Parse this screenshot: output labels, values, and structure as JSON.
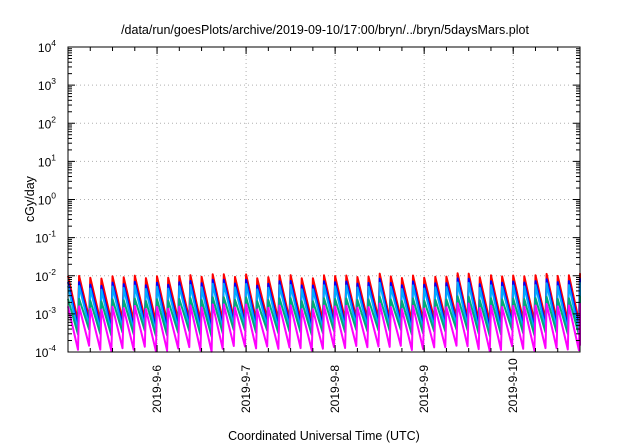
{
  "chart_data": {
    "type": "line",
    "title": "/data/run/goesPlots/archive/2019-09-10/17:00/bryn/../bryn/5daysMars.plot",
    "xlabel": "Coordinated Universal Time (UTC)",
    "ylabel": "cGy/day",
    "x_range": [
      "2019-09-05T00:00",
      "2019-09-10T18:00"
    ],
    "x_ticks": [
      "2019-9-6",
      "2019-9-7",
      "2019-9-8",
      "2019-9-9",
      "2019-9-10"
    ],
    "ylim": [
      0.0001,
      10000
    ],
    "y_scale": "log",
    "y_ticks": [
      {
        "base": "10",
        "exp": "4"
      },
      {
        "base": "10",
        "exp": "3"
      },
      {
        "base": "10",
        "exp": "2"
      },
      {
        "base": "10",
        "exp": "1"
      },
      {
        "base": "10",
        "exp": "0"
      },
      {
        "base": "10",
        "exp": "-1"
      },
      {
        "base": "10",
        "exp": "-2"
      },
      {
        "base": "10",
        "exp": "-3"
      },
      {
        "base": "10",
        "exp": "-4"
      }
    ],
    "grid": true,
    "oscillation_period_hours": 3,
    "series": [
      {
        "color": "#ff0000",
        "peak_values": [
          0.008,
          0.012
        ],
        "trough_values": [
          0.0006,
          0.0008
        ]
      },
      {
        "color": "#0000ff",
        "peak_values": [
          0.005,
          0.009
        ],
        "trough_values": [
          0.0004,
          0.0006
        ]
      },
      {
        "color": "#00aaff",
        "peak_values": [
          0.004,
          0.007
        ],
        "trough_values": [
          0.0003,
          0.0005
        ]
      },
      {
        "color": "#00aa77",
        "peak_values": [
          0.002,
          0.003
        ],
        "trough_values": [
          0.00025,
          0.0004
        ]
      },
      {
        "color": "#ff00ff",
        "peak_values": [
          0.0012,
          0.002
        ],
        "trough_values": [
          0.0001,
          0.00015
        ]
      }
    ]
  }
}
